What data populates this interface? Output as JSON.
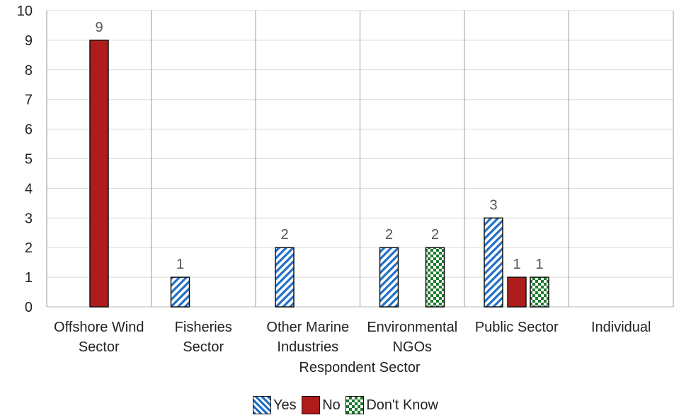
{
  "chart_data": {
    "type": "bar",
    "title": "",
    "xlabel": "Respondent Sector",
    "ylabel": "",
    "ylim": [
      0,
      10
    ],
    "yticks": [
      0,
      1,
      2,
      3,
      4,
      5,
      6,
      7,
      8,
      9,
      10
    ],
    "grid": true,
    "legend_position": "bottom",
    "categories": [
      "Offshore Wind Sector",
      "Fisheries Sector",
      "Other Marine Industries",
      "Environmental NGOs",
      "Public Sector",
      "Individual"
    ],
    "category_lines": [
      [
        "Offshore Wind",
        "Sector"
      ],
      [
        "Fisheries",
        "Sector"
      ],
      [
        "Other Marine",
        "Industries"
      ],
      [
        "Environmental",
        "NGOs"
      ],
      [
        "Public Sector"
      ],
      [
        "Individual"
      ]
    ],
    "series": [
      {
        "name": "Yes",
        "pattern": "diagonal-stripes",
        "color": "#1F6FC5",
        "values": [
          0,
          1,
          2,
          2,
          3,
          0
        ]
      },
      {
        "name": "No",
        "pattern": "solid",
        "color": "#B01C1C",
        "values": [
          9,
          0,
          0,
          0,
          1,
          0
        ]
      },
      {
        "name": "Don't Know",
        "pattern": "checkerboard",
        "color": "#1E7A2E",
        "values": [
          0,
          0,
          0,
          2,
          1,
          0
        ]
      }
    ],
    "data_labels": true
  },
  "legend": {
    "items": [
      "Yes",
      "No",
      "Don't Know"
    ]
  },
  "axis": {
    "xlabel": "Respondent Sector"
  }
}
